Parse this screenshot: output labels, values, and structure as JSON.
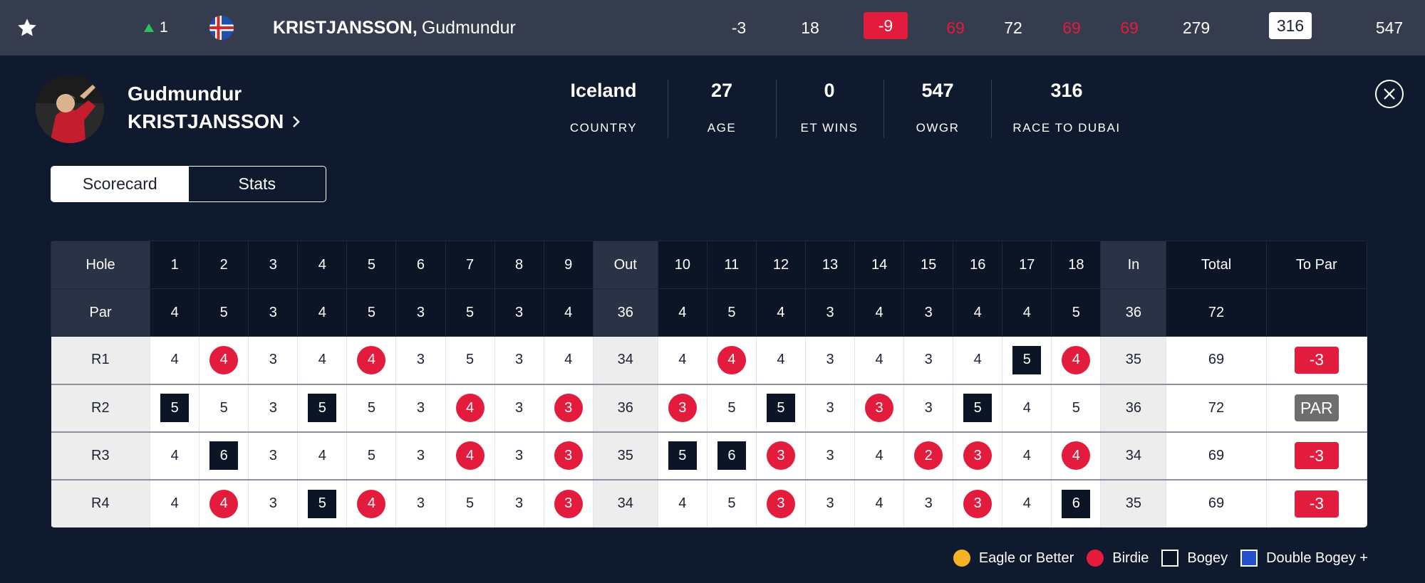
{
  "leaderboard_row": {
    "position_move": "1",
    "player_surname": "KRISTJANSSON,",
    "player_firstname": "Gudmundur",
    "cells": [
      "-3",
      "18",
      "-9",
      "69",
      "72",
      "69",
      "69",
      "279",
      "316",
      "547"
    ],
    "colors": {
      "red": "#e31b3c",
      "move_up": "#2fbf5f",
      "row_bg": "#353c4d"
    }
  },
  "player": {
    "first_name": "Gudmundur",
    "last_name": "KRISTJANSSON",
    "stats": [
      {
        "value": "Iceland",
        "label": "COUNTRY"
      },
      {
        "value": "27",
        "label": "AGE"
      },
      {
        "value": "0",
        "label": "ET WINS"
      },
      {
        "value": "547",
        "label": "OWGR"
      },
      {
        "value": "316",
        "label": "RACE TO DUBAI"
      }
    ]
  },
  "tabs": [
    {
      "label": "Scorecard",
      "active": true
    },
    {
      "label": "Stats",
      "active": false
    }
  ],
  "scorecard": {
    "hole_label": "Hole",
    "par_label": "Par",
    "holes": [
      "1",
      "2",
      "3",
      "4",
      "5",
      "6",
      "7",
      "8",
      "9",
      "Out",
      "10",
      "11",
      "12",
      "13",
      "14",
      "15",
      "16",
      "17",
      "18",
      "In",
      "Total",
      "To Par"
    ],
    "pars": [
      "4",
      "5",
      "3",
      "4",
      "5",
      "3",
      "5",
      "3",
      "4",
      "36",
      "4",
      "5",
      "4",
      "3",
      "4",
      "3",
      "4",
      "4",
      "5",
      "36",
      "72",
      ""
    ],
    "rounds": [
      {
        "label": "R1",
        "scores": [
          "4",
          "4",
          "3",
          "4",
          "4",
          "3",
          "5",
          "3",
          "4",
          "34",
          "4",
          "4",
          "4",
          "3",
          "4",
          "3",
          "4",
          "5",
          "4",
          "35",
          "69",
          "-3"
        ],
        "marks": [
          "",
          "B",
          "",
          "",
          "B",
          "",
          "",
          "",
          "",
          "",
          "",
          "B",
          "",
          "",
          "",
          "",
          "",
          "G",
          "B",
          "",
          "",
          ""
        ]
      },
      {
        "label": "R2",
        "scores": [
          "5",
          "5",
          "3",
          "5",
          "5",
          "3",
          "4",
          "3",
          "3",
          "36",
          "3",
          "5",
          "5",
          "3",
          "3",
          "3",
          "5",
          "4",
          "5",
          "36",
          "72",
          "PAR"
        ],
        "marks": [
          "G",
          "",
          "",
          "G",
          "",
          "",
          "B",
          "",
          "B",
          "",
          "B",
          "",
          "G",
          "",
          "B",
          "",
          "G",
          "",
          "",
          "",
          "",
          ""
        ]
      },
      {
        "label": "R3",
        "scores": [
          "4",
          "6",
          "3",
          "4",
          "5",
          "3",
          "4",
          "3",
          "3",
          "35",
          "5",
          "6",
          "3",
          "3",
          "4",
          "2",
          "3",
          "4",
          "4",
          "34",
          "69",
          "-3"
        ],
        "marks": [
          "",
          "G",
          "",
          "",
          "",
          "",
          "B",
          "",
          "B",
          "",
          "G",
          "G",
          "B",
          "",
          "",
          "B",
          "B",
          "",
          "B",
          "",
          "",
          ""
        ]
      },
      {
        "label": "R4",
        "scores": [
          "4",
          "4",
          "3",
          "5",
          "4",
          "3",
          "5",
          "3",
          "3",
          "34",
          "4",
          "5",
          "3",
          "3",
          "4",
          "3",
          "3",
          "4",
          "6",
          "35",
          "69",
          "-3"
        ],
        "marks": [
          "",
          "B",
          "",
          "G",
          "B",
          "",
          "",
          "",
          "B",
          "",
          "",
          "",
          "B",
          "",
          "",
          "",
          "B",
          "",
          "G",
          "",
          "",
          ""
        ]
      }
    ]
  },
  "legend": [
    {
      "label": "Eagle or Better",
      "color": "#f5b324",
      "shape": "circle"
    },
    {
      "label": "Birdie",
      "color": "#e31b3c",
      "shape": "circle"
    },
    {
      "label": "Bogey",
      "color": "#0c1526",
      "shape": "square"
    },
    {
      "label": "Double Bogey +",
      "color": "#2251c9",
      "shape": "square"
    }
  ]
}
